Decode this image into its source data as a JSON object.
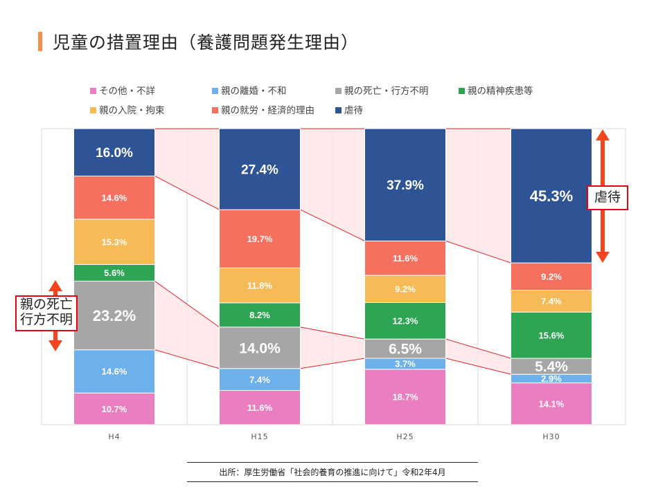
{
  "title": "児童の措置理由（養護問題発生理由）",
  "legend": [
    {
      "label": "その他・不詳",
      "color": "#e97fc0"
    },
    {
      "label": "親の離婚・不和",
      "color": "#6db1ec"
    },
    {
      "label": "親の死亡・行方不明",
      "color": "#a6a6a6"
    },
    {
      "label": "親の精神疾患等",
      "color": "#2ea553"
    },
    {
      "label": "親の入院・拘束",
      "color": "#f6bb57"
    },
    {
      "label": "親の就労・経済的理由",
      "color": "#f6705f"
    },
    {
      "label": "虐待",
      "color": "#2e5496"
    }
  ],
  "chart_data": {
    "type": "bar",
    "stacked": true,
    "categories": [
      "H4",
      "H15",
      "H25",
      "H30"
    ],
    "ylim": [
      0,
      100
    ],
    "series": [
      {
        "name": "その他・不詳",
        "color": "#e97fc0",
        "values": [
          10.7,
          11.6,
          18.7,
          14.1
        ],
        "labels": [
          "10.7%",
          "11.6%",
          "18.7%",
          "14.1%"
        ]
      },
      {
        "name": "親の離婚・不和",
        "color": "#6db1ec",
        "values": [
          14.6,
          7.4,
          3.7,
          2.9
        ],
        "labels": [
          "14.6%",
          "7.4%",
          "3.7%",
          "2.9%"
        ]
      },
      {
        "name": "親の死亡・行方不明",
        "color": "#a6a6a6",
        "values": [
          23.2,
          14.0,
          6.5,
          5.4
        ],
        "labels": [
          "23.2%",
          "14.0%",
          "6.5%",
          "5.4%"
        ]
      },
      {
        "name": "親の精神疾患等",
        "color": "#2ea553",
        "values": [
          5.6,
          8.2,
          12.3,
          15.6
        ],
        "labels": [
          "5.6%",
          "8.2%",
          "12.3%",
          "15.6%"
        ]
      },
      {
        "name": "親の入院・拘束",
        "color": "#f6bb57",
        "values": [
          15.3,
          11.8,
          9.2,
          7.4
        ],
        "labels": [
          "15.3%",
          "11.8%",
          "9.2%",
          "7.4%"
        ]
      },
      {
        "name": "親の就労・経済的理由",
        "color": "#f6705f",
        "values": [
          14.6,
          19.7,
          11.6,
          9.2
        ],
        "labels": [
          "14.6%",
          "19.7%",
          "11.6%",
          "9.2%"
        ]
      },
      {
        "name": "虐待",
        "color": "#2e5496",
        "values": [
          16.0,
          27.4,
          37.9,
          45.3
        ],
        "labels": [
          "16.0%",
          "27.4%",
          "37.9%",
          "45.3%"
        ]
      }
    ],
    "emphasized_series": [
      "親の死亡・行方不明",
      "虐待"
    ],
    "grid": false,
    "legend_position": "top"
  },
  "callouts": {
    "death_label": "親の死亡\n行方不明",
    "abuse_label": "虐待",
    "arrow_color": "#f5451e"
  },
  "source": "出所：厚生労働省「社会的養育の推進に向けて」令和2年4月"
}
